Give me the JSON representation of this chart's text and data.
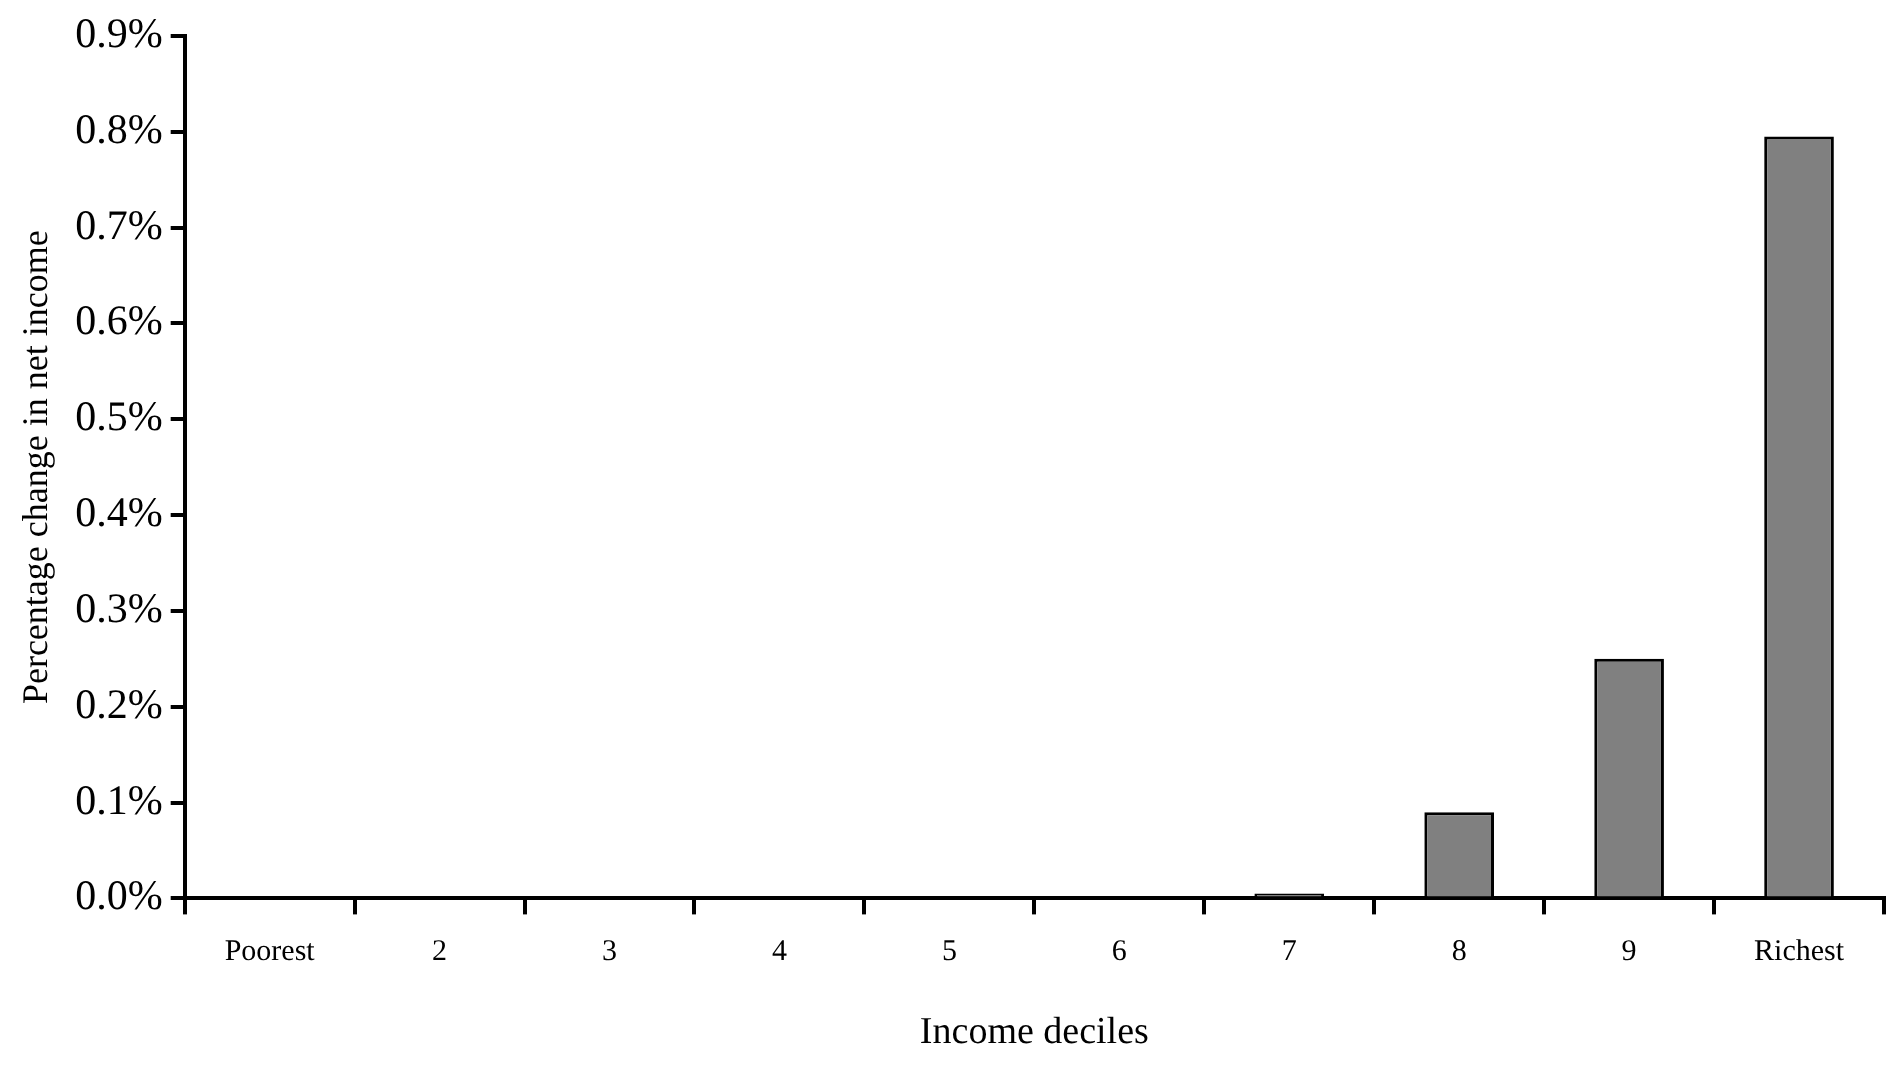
{
  "chart_data": {
    "type": "bar",
    "xlabel": "Income deciles",
    "ylabel": "Percentage change in net income",
    "categories": [
      "Poorest",
      "2",
      "3",
      "4",
      "5",
      "6",
      "7",
      "8",
      "9",
      "Richest"
    ],
    "values": [
      0,
      0,
      0,
      0,
      0,
      0,
      0.005,
      0.09,
      0.25,
      0.795
    ],
    "color": "#808080",
    "ylim": [
      0,
      0.9
    ],
    "yticks": [
      {
        "value": 0,
        "label": "0.0%"
      },
      {
        "value": 0.1,
        "label": "0.1%"
      },
      {
        "value": 0.2,
        "label": "0.2%"
      },
      {
        "value": 0.3,
        "label": "0.3%"
      },
      {
        "value": 0.4,
        "label": "0.4%"
      },
      {
        "value": 0.5,
        "label": "0.5%"
      },
      {
        "value": 0.6,
        "label": "0.6%"
      },
      {
        "value": 0.7,
        "label": "0.7%"
      },
      {
        "value": 0.8,
        "label": "0.8%"
      },
      {
        "value": 0.9,
        "label": "0.9%"
      }
    ],
    "grid": false,
    "legend": false
  }
}
